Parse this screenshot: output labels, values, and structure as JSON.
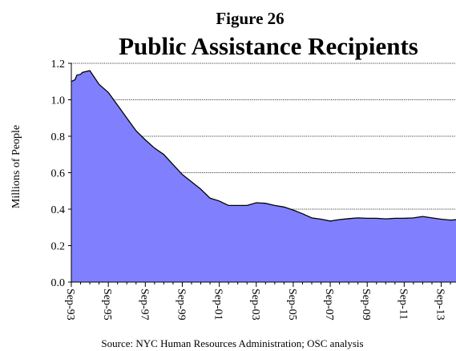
{
  "figure_label": "Figure 26",
  "chart_data": {
    "type": "area",
    "title": "Public Assistance Recipients",
    "ylabel": "Millions of People",
    "xlabel": "",
    "ylim": [
      0,
      1.2
    ],
    "yticks": [
      "0.0",
      "0.2",
      "0.4",
      "0.6",
      "0.8",
      "1.0",
      "1.2"
    ],
    "xticks": [
      "Sep-93",
      "Sep-95",
      "Sep-97",
      "Sep-99",
      "Sep-01",
      "Sep-03",
      "Sep-05",
      "Sep-07",
      "Sep-09",
      "Sep-11",
      "Sep-13"
    ],
    "grid": true,
    "fill_color": "#8080ff",
    "series": [
      {
        "x": [
          0,
          0.2,
          0.3,
          0.5,
          0.6,
          1.0,
          1.5,
          2.0,
          2.5,
          3.0,
          3.5,
          4.0,
          4.5,
          5.0,
          5.5,
          6.0,
          6.5,
          7.0,
          7.5,
          8.0,
          8.5,
          9.0,
          9.5,
          10.0,
          10.5,
          11.0,
          11.5,
          12.0,
          12.5,
          13.0,
          13.5,
          14.0,
          14.5,
          15.0,
          15.5,
          16.0,
          16.5,
          17.0,
          17.5,
          18.0,
          18.5,
          19.0,
          19.5,
          20.0,
          20.5,
          20.8
        ],
        "y": [
          1.1,
          1.11,
          1.135,
          1.14,
          1.15,
          1.16,
          1.085,
          1.04,
          0.97,
          0.9,
          0.83,
          0.78,
          0.735,
          0.7,
          0.645,
          0.59,
          0.55,
          0.51,
          0.46,
          0.445,
          0.42,
          0.42,
          0.42,
          0.435,
          0.432,
          0.42,
          0.412,
          0.395,
          0.375,
          0.352,
          0.345,
          0.335,
          0.343,
          0.348,
          0.352,
          0.35,
          0.35,
          0.347,
          0.35,
          0.35,
          0.352,
          0.36,
          0.352,
          0.345,
          0.34,
          0.342
        ]
      }
    ]
  },
  "source_text": "Source:  NYC Human Resources Administration; OSC analysis"
}
